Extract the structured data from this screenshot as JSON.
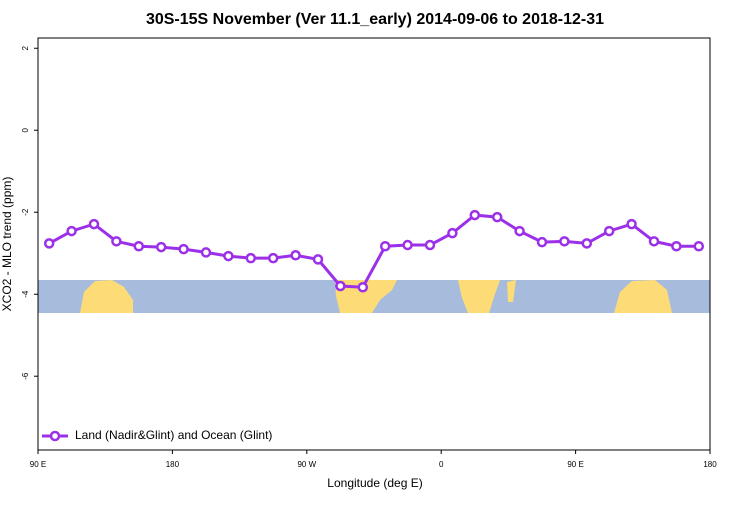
{
  "chart_data": {
    "type": "line",
    "title": "30S-15S November (Ver 11.1_early)   2014-09-06 to 2018-12-31",
    "x_label": "Longitude (deg E)",
    "y_label": "XCO2 - MLO trend (ppm)",
    "x": [
      97.5,
      112.5,
      127.5,
      142.5,
      157.5,
      172.5,
      187.5,
      202.5,
      217.5,
      232.5,
      247.5,
      262.5,
      277.5,
      292.5,
      307.5,
      322.5,
      337.5,
      352.5,
      367.5,
      382.5,
      397.5,
      412.5,
      427.5,
      442.5,
      457.5,
      472.5,
      487.5,
      502.5,
      517.5,
      532.5
    ],
    "series": [
      {
        "name": "Land (Nadir&Glint) and Ocean (Glint)",
        "color": "#9b30e8",
        "values": [
          -2.76,
          -2.46,
          -2.29,
          -2.71,
          -2.83,
          -2.85,
          -2.9,
          -2.98,
          -3.07,
          -3.12,
          -3.12,
          -3.05,
          -3.15,
          -3.8,
          -3.83,
          -2.83,
          -2.8,
          -2.8,
          -2.51,
          -2.07,
          -2.12,
          -2.46,
          -2.73,
          -2.71,
          -2.76,
          -2.46,
          -2.29,
          -2.71,
          -2.83,
          -2.83
        ]
      }
    ],
    "xlim": [
      90,
      540
    ],
    "ylim": [
      -7.8,
      2.25
    ],
    "xticks": [
      {
        "value": 90,
        "label": "90 E"
      },
      {
        "value": 180,
        "label": "180"
      },
      {
        "value": 270,
        "label": "90 W"
      },
      {
        "value": 360,
        "label": "0"
      },
      {
        "value": 450,
        "label": "90 E"
      },
      {
        "value": 540,
        "label": "180"
      }
    ],
    "yticks": [
      -6,
      -4,
      -2,
      0,
      2
    ],
    "legend_position": "bottom-left"
  }
}
